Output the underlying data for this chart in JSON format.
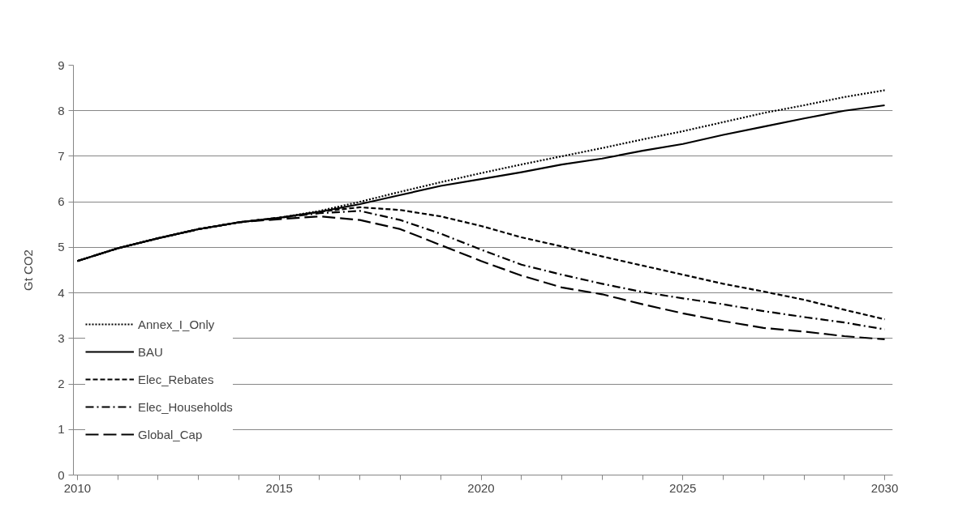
{
  "chart_data": {
    "type": "line",
    "ylabel": "Gt CO2",
    "x": [
      2010,
      2011,
      2012,
      2013,
      2014,
      2015,
      2016,
      2017,
      2018,
      2019,
      2020,
      2021,
      2022,
      2023,
      2024,
      2025,
      2026,
      2027,
      2028,
      2029,
      2030
    ],
    "series": [
      {
        "name": "Annex_I_Only",
        "color": "#000000",
        "line_style": "dotted",
        "values": [
          4.7,
          4.98,
          5.2,
          5.4,
          5.55,
          5.65,
          5.8,
          6.0,
          6.22,
          6.43,
          6.63,
          6.82,
          7.0,
          7.18,
          7.37,
          7.55,
          7.75,
          7.95,
          8.12,
          8.3,
          8.45
        ]
      },
      {
        "name": "BAU",
        "color": "#000000",
        "line_style": "solid",
        "values": [
          4.7,
          4.98,
          5.2,
          5.4,
          5.55,
          5.65,
          5.78,
          5.95,
          6.15,
          6.35,
          6.5,
          6.65,
          6.82,
          6.95,
          7.12,
          7.27,
          7.47,
          7.65,
          7.83,
          8.0,
          8.12
        ]
      },
      {
        "name": "Elec_Rebates",
        "color": "#000000",
        "line_style": "dashed",
        "values": [
          4.7,
          4.98,
          5.2,
          5.4,
          5.55,
          5.65,
          5.78,
          5.88,
          5.82,
          5.68,
          5.47,
          5.22,
          5.02,
          4.8,
          4.6,
          4.4,
          4.2,
          4.03,
          3.85,
          3.63,
          3.42
        ]
      },
      {
        "name": "Elec_Households",
        "color": "#000000",
        "line_style": "dashdot",
        "values": [
          4.7,
          4.98,
          5.2,
          5.4,
          5.55,
          5.65,
          5.75,
          5.8,
          5.6,
          5.3,
          4.95,
          4.62,
          4.4,
          4.2,
          4.02,
          3.88,
          3.75,
          3.6,
          3.47,
          3.35,
          3.2
        ]
      },
      {
        "name": "Global_Cap",
        "color": "#000000",
        "line_style": "longdash",
        "values": [
          4.7,
          4.98,
          5.2,
          5.4,
          5.55,
          5.62,
          5.68,
          5.6,
          5.4,
          5.05,
          4.7,
          4.38,
          4.12,
          3.97,
          3.75,
          3.55,
          3.38,
          3.23,
          3.15,
          3.05,
          2.98
        ]
      }
    ],
    "xlim": [
      2009.9,
      2030.2
    ],
    "xticks": [
      2010,
      2015,
      2020,
      2025,
      2030
    ],
    "ylim": [
      0,
      9
    ],
    "yticks": [
      0,
      1,
      2,
      3,
      4,
      5,
      6,
      7,
      8,
      9
    ],
    "grid": "y",
    "legend": "left",
    "marker": "none"
  }
}
